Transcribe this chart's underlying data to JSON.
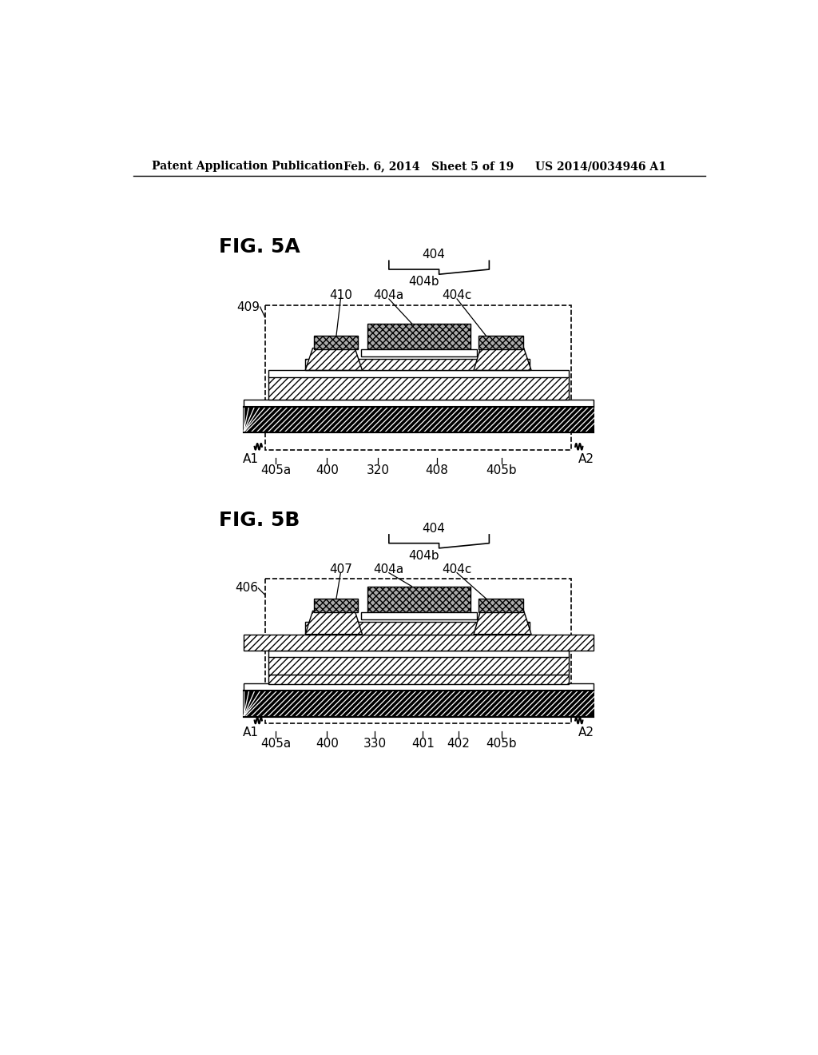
{
  "bg_color": "#ffffff",
  "header_left": "Patent Application Publication",
  "header_mid": "Feb. 6, 2014   Sheet 5 of 19",
  "header_right": "US 2014/0034946 A1",
  "fig5a_label": "FIG. 5A",
  "fig5b_label": "FIG. 5B"
}
